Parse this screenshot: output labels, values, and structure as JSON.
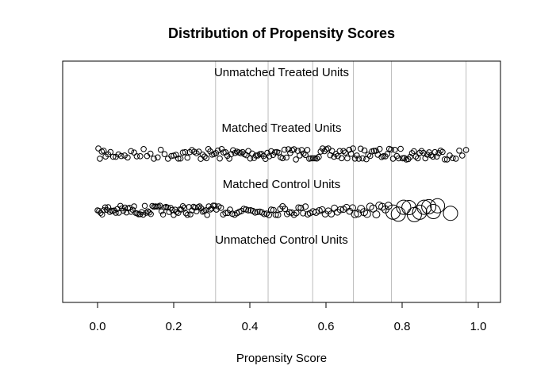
{
  "chart_data": {
    "type": "scatter",
    "title": "Distribution of Propensity Scores",
    "xlabel": "Propensity Score",
    "ylabel": "",
    "xlim": [
      -0.09,
      1.06
    ],
    "xticks": [
      0.0,
      0.2,
      0.4,
      0.6,
      0.8,
      1.0
    ],
    "xtick_labels": [
      "0.0",
      "0.2",
      "0.4",
      "0.6",
      "0.8",
      "1.0"
    ],
    "grid": "vertical lines at subclass cutpoints",
    "subclass_cutpoints": [
      0.31,
      0.448,
      0.565,
      0.672,
      0.772,
      0.968
    ],
    "groups": [
      {
        "label": "Unmatched Treated Units",
        "points": []
      },
      {
        "label": "Matched Treated Units",
        "points": [],
        "jitter": true
      },
      {
        "label": "Matched Control Units",
        "points": [],
        "jitter": true,
        "marker_size": "proportional to weight"
      },
      {
        "label": "Unmatched Control Units",
        "points": []
      }
    ],
    "matched_treated_points": [
      0.002,
      0.006,
      0.011,
      0.016,
      0.021,
      0.028,
      0.034,
      0.041,
      0.048,
      0.055,
      0.062,
      0.071,
      0.079,
      0.088,
      0.096,
      0.103,
      0.112,
      0.121,
      0.13,
      0.139,
      0.148,
      0.158,
      0.166,
      0.176,
      0.185,
      0.194,
      0.2,
      0.206,
      0.212,
      0.218,
      0.224,
      0.23,
      0.236,
      0.242,
      0.248,
      0.254,
      0.26,
      0.266,
      0.271,
      0.276,
      0.281,
      0.286,
      0.291,
      0.296,
      0.301,
      0.306,
      0.311,
      0.316,
      0.321,
      0.326,
      0.331,
      0.336,
      0.341,
      0.346,
      0.351,
      0.356,
      0.361,
      0.366,
      0.371,
      0.376,
      0.381,
      0.386,
      0.391,
      0.396,
      0.401,
      0.406,
      0.411,
      0.416,
      0.421,
      0.426,
      0.431,
      0.436,
      0.441,
      0.446,
      0.451,
      0.456,
      0.461,
      0.466,
      0.471,
      0.476,
      0.481,
      0.486,
      0.491,
      0.496,
      0.501,
      0.506,
      0.511,
      0.516,
      0.521,
      0.526,
      0.531,
      0.536,
      0.541,
      0.546,
      0.551,
      0.556,
      0.561,
      0.566,
      0.571,
      0.576,
      0.581,
      0.586,
      0.591,
      0.596,
      0.601,
      0.606,
      0.611,
      0.616,
      0.621,
      0.626,
      0.631,
      0.636,
      0.641,
      0.646,
      0.651,
      0.656,
      0.661,
      0.666,
      0.671,
      0.676,
      0.681,
      0.686,
      0.691,
      0.696,
      0.701,
      0.706,
      0.711,
      0.716,
      0.721,
      0.726,
      0.731,
      0.736,
      0.741,
      0.746,
      0.751,
      0.756,
      0.761,
      0.766,
      0.771,
      0.776,
      0.781,
      0.786,
      0.791,
      0.796,
      0.801,
      0.806,
      0.811,
      0.816,
      0.821,
      0.826,
      0.831,
      0.836,
      0.841,
      0.846,
      0.851,
      0.856,
      0.861,
      0.866,
      0.871,
      0.876,
      0.881,
      0.886,
      0.891,
      0.896,
      0.901,
      0.906,
      0.912,
      0.918,
      0.925,
      0.933,
      0.941,
      0.95,
      0.958,
      0.968
    ],
    "matched_control_points": [
      [
        0.0,
        1
      ],
      [
        0.004,
        1
      ],
      [
        0.008,
        1
      ],
      [
        0.012,
        1
      ],
      [
        0.016,
        1
      ],
      [
        0.02,
        1
      ],
      [
        0.024,
        1
      ],
      [
        0.028,
        1
      ],
      [
        0.032,
        1
      ],
      [
        0.036,
        1
      ],
      [
        0.04,
        1
      ],
      [
        0.044,
        1
      ],
      [
        0.048,
        1
      ],
      [
        0.052,
        1
      ],
      [
        0.056,
        1
      ],
      [
        0.06,
        1
      ],
      [
        0.064,
        1
      ],
      [
        0.068,
        1
      ],
      [
        0.072,
        1
      ],
      [
        0.076,
        1
      ],
      [
        0.08,
        1
      ],
      [
        0.084,
        1
      ],
      [
        0.088,
        1
      ],
      [
        0.092,
        1
      ],
      [
        0.096,
        1
      ],
      [
        0.1,
        1
      ],
      [
        0.104,
        1
      ],
      [
        0.108,
        1
      ],
      [
        0.112,
        1
      ],
      [
        0.116,
        1
      ],
      [
        0.12,
        1
      ],
      [
        0.124,
        1
      ],
      [
        0.128,
        1
      ],
      [
        0.132,
        1
      ],
      [
        0.136,
        1
      ],
      [
        0.14,
        1
      ],
      [
        0.144,
        1
      ],
      [
        0.148,
        1
      ],
      [
        0.152,
        1
      ],
      [
        0.156,
        1
      ],
      [
        0.16,
        1
      ],
      [
        0.164,
        1
      ],
      [
        0.168,
        1
      ],
      [
        0.172,
        1
      ],
      [
        0.176,
        1
      ],
      [
        0.18,
        1
      ],
      [
        0.184,
        1
      ],
      [
        0.188,
        1
      ],
      [
        0.192,
        1
      ],
      [
        0.196,
        1
      ],
      [
        0.2,
        1
      ],
      [
        0.204,
        1
      ],
      [
        0.208,
        1
      ],
      [
        0.212,
        1
      ],
      [
        0.216,
        1
      ],
      [
        0.22,
        1
      ],
      [
        0.224,
        1
      ],
      [
        0.228,
        1
      ],
      [
        0.232,
        1
      ],
      [
        0.236,
        1
      ],
      [
        0.24,
        1
      ],
      [
        0.244,
        1
      ],
      [
        0.248,
        1
      ],
      [
        0.252,
        1
      ],
      [
        0.256,
        1
      ],
      [
        0.26,
        1
      ],
      [
        0.264,
        1
      ],
      [
        0.268,
        1
      ],
      [
        0.272,
        1
      ],
      [
        0.276,
        1
      ],
      [
        0.28,
        1
      ],
      [
        0.284,
        1
      ],
      [
        0.288,
        1
      ],
      [
        0.292,
        1
      ],
      [
        0.296,
        1
      ],
      [
        0.3,
        1
      ],
      [
        0.304,
        1
      ],
      [
        0.308,
        1
      ],
      [
        0.312,
        1.1
      ],
      [
        0.318,
        1.1
      ],
      [
        0.324,
        1.1
      ],
      [
        0.33,
        1.1
      ],
      [
        0.336,
        1.1
      ],
      [
        0.342,
        1.1
      ],
      [
        0.348,
        1.1
      ],
      [
        0.354,
        1.1
      ],
      [
        0.36,
        1.1
      ],
      [
        0.366,
        1.1
      ],
      [
        0.372,
        1.1
      ],
      [
        0.378,
        1.1
      ],
      [
        0.384,
        1.1
      ],
      [
        0.39,
        1.1
      ],
      [
        0.396,
        1.1
      ],
      [
        0.402,
        1.1
      ],
      [
        0.408,
        1.1
      ],
      [
        0.414,
        1.1
      ],
      [
        0.42,
        1.1
      ],
      [
        0.426,
        1.1
      ],
      [
        0.432,
        1.1
      ],
      [
        0.438,
        1.1
      ],
      [
        0.444,
        1.1
      ],
      [
        0.45,
        1.2
      ],
      [
        0.456,
        1.2
      ],
      [
        0.462,
        1.2
      ],
      [
        0.468,
        1.2
      ],
      [
        0.474,
        1.2
      ],
      [
        0.48,
        1.2
      ],
      [
        0.486,
        1.2
      ],
      [
        0.492,
        1.2
      ],
      [
        0.498,
        1.2
      ],
      [
        0.504,
        1.2
      ],
      [
        0.51,
        1.2
      ],
      [
        0.516,
        1.2
      ],
      [
        0.522,
        1.2
      ],
      [
        0.528,
        1.2
      ],
      [
        0.534,
        1.2
      ],
      [
        0.54,
        1.2
      ],
      [
        0.546,
        1.2
      ],
      [
        0.552,
        1.2
      ],
      [
        0.558,
        1.2
      ],
      [
        0.566,
        1.5
      ],
      [
        0.574,
        1.5
      ],
      [
        0.582,
        1.5
      ],
      [
        0.59,
        1.5
      ],
      [
        0.598,
        1.5
      ],
      [
        0.606,
        1.5
      ],
      [
        0.614,
        1.5
      ],
      [
        0.622,
        1.5
      ],
      [
        0.63,
        1.5
      ],
      [
        0.638,
        1.5
      ],
      [
        0.646,
        1.5
      ],
      [
        0.654,
        1.5
      ],
      [
        0.662,
        1.5
      ],
      [
        0.67,
        1.5
      ],
      [
        0.676,
        2
      ],
      [
        0.684,
        2
      ],
      [
        0.692,
        2
      ],
      [
        0.7,
        2
      ],
      [
        0.708,
        2
      ],
      [
        0.716,
        2
      ],
      [
        0.724,
        2
      ],
      [
        0.732,
        2
      ],
      [
        0.74,
        2
      ],
      [
        0.748,
        2
      ],
      [
        0.756,
        2
      ],
      [
        0.764,
        2
      ],
      [
        0.776,
        3
      ],
      [
        0.79,
        3
      ],
      [
        0.804,
        3
      ],
      [
        0.818,
        3
      ],
      [
        0.832,
        3
      ],
      [
        0.846,
        3
      ],
      [
        0.858,
        3
      ],
      [
        0.87,
        3
      ],
      [
        0.882,
        3
      ],
      [
        0.893,
        3
      ],
      [
        0.927,
        3
      ]
    ]
  }
}
